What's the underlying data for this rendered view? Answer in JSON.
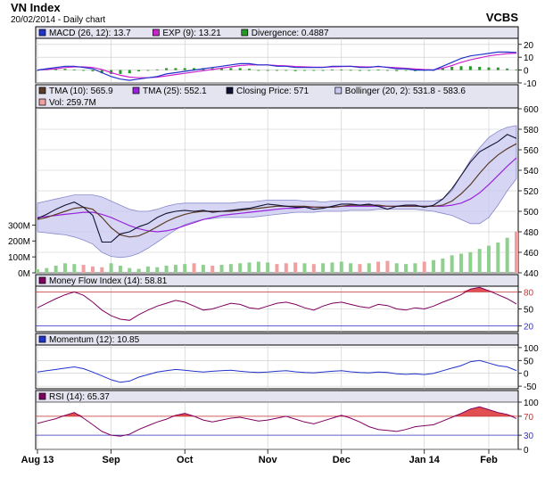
{
  "header": {
    "title": "VN Index",
    "subtitle": "20/02/2014 - Daily chart",
    "brand": "VCBS"
  },
  "colors": {
    "macd": "#2233cc",
    "exp": "#cc22cc",
    "divergence": "#229922",
    "tma10": "#5a3a28",
    "tma25": "#9922dd",
    "closing": "#111133",
    "bollinger_fill": "#c8c8f0",
    "bollinger_line": "#8888cc",
    "vol_up": "#8fd08f",
    "vol_down": "#f0a0a0",
    "mfi": "#800060",
    "momentum": "#2233cc",
    "rsi": "#800060",
    "overbought_fill": "#e05050",
    "panel_header_bg": "#e4e4f0",
    "grid": "#c8c8c8"
  },
  "chart_data": [
    {
      "type": "line",
      "panel": "macd",
      "legend": [
        {
          "label": "MACD (26, 12): 13.7",
          "color": "#2233cc"
        },
        {
          "label": "EXP (9): 13.21",
          "color": "#cc22cc"
        },
        {
          "label": "Divergence: 0.4887",
          "color": "#229922"
        }
      ],
      "yticks": [
        20,
        10,
        0,
        -10
      ],
      "ylim": [
        -10,
        24
      ],
      "series": [
        {
          "name": "MACD (26, 12)",
          "values": [
            0,
            1,
            2,
            3,
            3,
            2,
            1,
            -2,
            -5,
            -7,
            -8,
            -7,
            -6,
            -5,
            -3,
            -2,
            -1,
            0,
            1,
            2,
            3,
            4,
            5,
            5,
            4,
            4,
            3,
            3,
            2,
            2,
            2,
            2,
            3,
            3,
            3,
            2,
            2,
            3,
            2,
            1,
            1,
            0,
            0,
            0,
            3,
            6,
            9,
            11,
            12,
            13,
            14,
            14,
            13.7
          ]
        },
        {
          "name": "EXP (9)",
          "values": [
            0,
            0.5,
            1,
            2,
            2.5,
            2.5,
            2,
            0.5,
            -2,
            -4,
            -5.5,
            -6,
            -6,
            -5.5,
            -4.5,
            -3.5,
            -2.5,
            -1.5,
            -0.5,
            0.5,
            1.5,
            2.5,
            3.5,
            4,
            4,
            4,
            3.5,
            3.3,
            2.8,
            2.5,
            2.3,
            2.2,
            2.5,
            2.7,
            2.9,
            2.6,
            2.4,
            2.6,
            2.3,
            1.8,
            1.4,
            0.8,
            0.4,
            0.2,
            1.5,
            3.5,
            6,
            8,
            9.5,
            11,
            12,
            12.8,
            13.21
          ]
        },
        {
          "name": "Divergence",
          "values": [
            0,
            0.5,
            1,
            1,
            0.5,
            -0.5,
            -1,
            -2.5,
            -3,
            -3,
            -2.5,
            -1,
            0,
            0.5,
            1.5,
            1.5,
            1.5,
            1.5,
            1.5,
            1.5,
            1.5,
            1.5,
            1.5,
            1,
            0,
            0,
            -0.5,
            -0.3,
            -0.8,
            -0.5,
            -0.3,
            -0.2,
            0.5,
            0.3,
            0.1,
            -0.6,
            -0.4,
            0.4,
            -0.3,
            -0.8,
            -0.4,
            -0.8,
            -0.4,
            -0.2,
            1.5,
            2.5,
            3,
            3,
            2.5,
            2,
            2,
            1.2,
            0.49
          ]
        }
      ]
    },
    {
      "type": "line",
      "panel": "price",
      "legend": [
        {
          "label": "TMA (10): 565.9",
          "color": "#5a3a28"
        },
        {
          "label": "TMA (25): 552.1",
          "color": "#9922dd"
        },
        {
          "label": "Closing Price: 571",
          "color": "#111133"
        },
        {
          "label": "Bollinger (20, 2): 531.8 - 583.6",
          "color": "#c8c8f0"
        },
        {
          "label": "Vol: 259.7M",
          "color": "#f0a0a0"
        }
      ],
      "yticks": [
        600,
        580,
        560,
        540,
        520,
        500,
        480,
        460,
        440
      ],
      "vol_ticks": [
        "300M",
        "200M",
        "100M",
        "0M"
      ],
      "ylim": [
        440,
        600
      ],
      "vol_max": 330,
      "series": [
        {
          "name": "Closing Price",
          "values": [
            493,
            497,
            502,
            506,
            509,
            504,
            496,
            470,
            470,
            478,
            480,
            485,
            488,
            494,
            498,
            500,
            501,
            500,
            501,
            499,
            500,
            501,
            502,
            503,
            505,
            507,
            506,
            505,
            504,
            504,
            502,
            503,
            505,
            507,
            507,
            506,
            507,
            505,
            502,
            505,
            506,
            506,
            504,
            506,
            512,
            522,
            535,
            548,
            558,
            563,
            568,
            575,
            571
          ]
        },
        {
          "name": "TMA (10)",
          "values": [
            492,
            494,
            497,
            500,
            503,
            504,
            502,
            494,
            484,
            477,
            475,
            476,
            480,
            485,
            490,
            494,
            497,
            499,
            500,
            500,
            500,
            500,
            501,
            502,
            503,
            504,
            505,
            505,
            505,
            505,
            504,
            504,
            504,
            505,
            506,
            506,
            506,
            506,
            505,
            505,
            505,
            505,
            505,
            505,
            506,
            510,
            517,
            526,
            537,
            547,
            555,
            561,
            565.9
          ]
        },
        {
          "name": "TMA (25)",
          "values": [
            494,
            495,
            496,
            497,
            498,
            499,
            499,
            497,
            494,
            490,
            486,
            483,
            481,
            480,
            481,
            483,
            486,
            489,
            492,
            494,
            496,
            497,
            498,
            499,
            500,
            501,
            502,
            503,
            503,
            504,
            504,
            504,
            504,
            505,
            505,
            505,
            505,
            505,
            505,
            505,
            505,
            505,
            505,
            505,
            505,
            506,
            508,
            512,
            518,
            526,
            535,
            544,
            552.1
          ]
        },
        {
          "name": "Bollinger upper",
          "values": [
            508,
            510,
            512,
            514,
            516,
            516,
            516,
            514,
            510,
            506,
            502,
            500,
            500,
            502,
            505,
            507,
            508,
            508,
            508,
            508,
            508,
            508,
            509,
            509,
            510,
            511,
            511,
            511,
            511,
            510,
            510,
            509,
            510,
            510,
            510,
            510,
            510,
            510,
            510,
            510,
            510,
            510,
            510,
            510,
            512,
            520,
            535,
            550,
            562,
            572,
            578,
            582,
            583.6
          ]
        },
        {
          "name": "Bollinger lower",
          "values": [
            480,
            479,
            478,
            477,
            475,
            472,
            468,
            460,
            456,
            455,
            456,
            459,
            464,
            470,
            476,
            482,
            487,
            490,
            492,
            493,
            494,
            494,
            494,
            494,
            495,
            496,
            497,
            498,
            499,
            499,
            499,
            500,
            500,
            500,
            501,
            501,
            501,
            502,
            502,
            502,
            502,
            502,
            501,
            500,
            498,
            496,
            492,
            488,
            488,
            494,
            506,
            520,
            531.8
          ]
        },
        {
          "name": "Vol",
          "values": [
            22,
            30,
            45,
            60,
            55,
            50,
            40,
            35,
            60,
            45,
            30,
            25,
            40,
            35,
            45,
            50,
            55,
            60,
            50,
            45,
            50,
            55,
            60,
            65,
            70,
            65,
            55,
            60,
            65,
            60,
            55,
            60,
            65,
            70,
            60,
            55,
            60,
            70,
            75,
            60,
            55,
            60,
            70,
            80,
            90,
            110,
            120,
            130,
            150,
            170,
            190,
            220,
            259.7
          ]
        }
      ]
    },
    {
      "type": "line",
      "panel": "mfi",
      "legend": [
        {
          "label": "Money Flow Index (14): 58.81",
          "color": "#800060"
        }
      ],
      "yticks": [
        80,
        50,
        20
      ],
      "ylim": [
        10,
        90
      ],
      "overbought": 80,
      "series": [
        {
          "name": "Money Flow Index (14)",
          "values": [
            52,
            60,
            68,
            75,
            80,
            74,
            62,
            48,
            38,
            32,
            30,
            40,
            48,
            55,
            60,
            65,
            62,
            55,
            48,
            50,
            55,
            60,
            58,
            52,
            50,
            55,
            60,
            62,
            58,
            52,
            48,
            55,
            60,
            62,
            58,
            54,
            52,
            58,
            56,
            50,
            48,
            52,
            50,
            55,
            62,
            68,
            75,
            85,
            88,
            82,
            75,
            68,
            58.81
          ]
        }
      ]
    },
    {
      "type": "line",
      "panel": "momentum",
      "legend": [
        {
          "label": "Momentum (12): 10.85",
          "color": "#2233cc"
        }
      ],
      "yticks": [
        100,
        50,
        0,
        -50
      ],
      "ylim": [
        -60,
        110
      ],
      "series": [
        {
          "name": "Momentum (12)",
          "values": [
            5,
            10,
            15,
            20,
            25,
            18,
            5,
            -10,
            -25,
            -35,
            -30,
            -15,
            -5,
            5,
            10,
            15,
            12,
            8,
            5,
            8,
            10,
            12,
            8,
            5,
            3,
            5,
            8,
            10,
            6,
            3,
            2,
            5,
            8,
            10,
            6,
            3,
            2,
            5,
            3,
            -2,
            -4,
            -2,
            -5,
            0,
            10,
            20,
            30,
            45,
            50,
            40,
            30,
            25,
            10.85
          ]
        }
      ]
    },
    {
      "type": "line",
      "panel": "rsi",
      "legend": [
        {
          "label": "RSI (14): 65.37",
          "color": "#800060"
        }
      ],
      "yticks": [
        100,
        70,
        30,
        0
      ],
      "ylim": [
        0,
        100
      ],
      "overbought": 70,
      "series": [
        {
          "name": "RSI (14)",
          "values": [
            55,
            60,
            65,
            72,
            78,
            66,
            52,
            38,
            30,
            28,
            32,
            42,
            50,
            58,
            64,
            72,
            76,
            70,
            62,
            58,
            62,
            66,
            68,
            64,
            60,
            62,
            66,
            70,
            64,
            58,
            54,
            60,
            66,
            72,
            66,
            58,
            48,
            42,
            40,
            38,
            42,
            48,
            50,
            52,
            60,
            68,
            76,
            85,
            90,
            84,
            78,
            74,
            65.37
          ]
        }
      ]
    }
  ],
  "x_axis": {
    "labels": [
      "Aug 13",
      "Sep",
      "Oct",
      "Nov",
      "Dec",
      "Jan 14",
      "Feb"
    ],
    "label_index": [
      0,
      8,
      16,
      25,
      33,
      42,
      49
    ]
  }
}
